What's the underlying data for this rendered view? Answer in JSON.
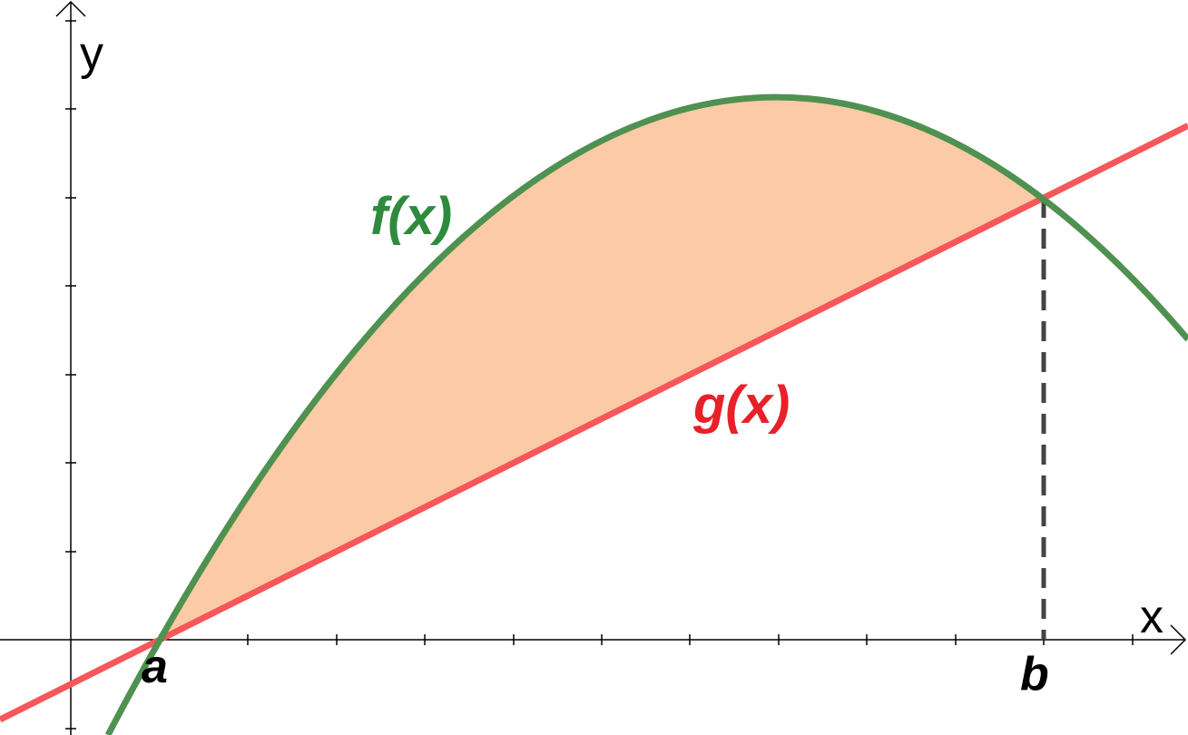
{
  "axes": {
    "x_label": "x",
    "y_label": "y"
  },
  "curves": {
    "f": "f(x)",
    "g": "g(x)"
  },
  "points": {
    "a": "a",
    "b": "b"
  }
}
